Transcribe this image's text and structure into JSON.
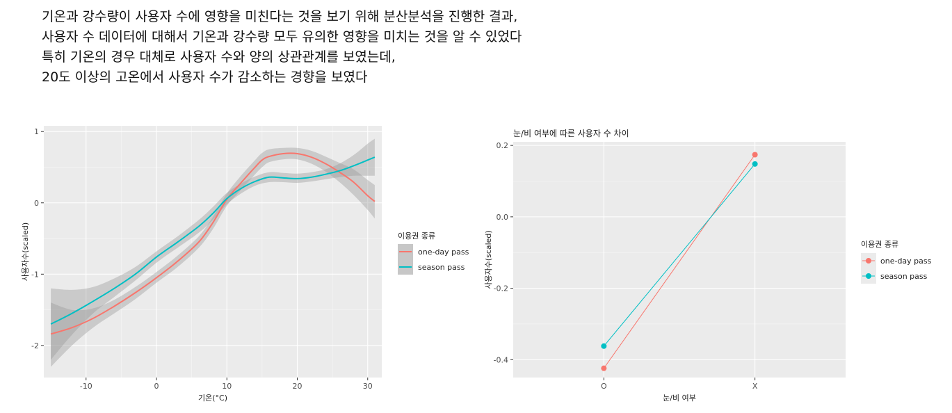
{
  "description": {
    "lines": [
      "기온과 강수량이 사용자 수에 영향을 미친다는 것을 보기 위해 분산분석을 진행한 결과,",
      "사용자 수 데이터에 대해서 기온과 강수량 모두 유의한 영향을 미치는 것을 알 수 있었다",
      "특히 기온의 경우 대체로 사용자 수와 양의 상관관계를 보였는데,",
      "20도 이상의 고온에서 사용자 수가 감소하는 경향을 보였다"
    ]
  },
  "colors": {
    "one_day": "#F8766D",
    "season": "#00BFC4",
    "panel": "#EBEBEB",
    "grid": "#FFFFFF",
    "ribbon": "#999999"
  },
  "chart_data": [
    {
      "type": "line",
      "subtype": "smooth-with-confidence-band",
      "title": "",
      "xlabel": "기온(°C)",
      "ylabel": "사용자수(scaled)",
      "xlim": [
        -16,
        32
      ],
      "ylim": [
        -2.45,
        1.08
      ],
      "xticks": [
        -10,
        0,
        10,
        20,
        30
      ],
      "xtick_labels": [
        "-10",
        "0",
        "10",
        "20",
        "30"
      ],
      "yticks": [
        -2,
        -1,
        0,
        1
      ],
      "ytick_labels": [
        "-2",
        "-1",
        "0",
        "1"
      ],
      "grid": true,
      "legend": {
        "title": "이용권 종류",
        "position": "right"
      },
      "series": [
        {
          "name": "one-day pass",
          "color": "#F8766D",
          "points": [
            [
              -15,
              -1.84
            ],
            [
              -12,
              -1.75
            ],
            [
              -9,
              -1.62
            ],
            [
              -6,
              -1.45
            ],
            [
              -3,
              -1.26
            ],
            [
              0,
              -1.05
            ],
            [
              3,
              -0.82
            ],
            [
              6,
              -0.55
            ],
            [
              8,
              -0.28
            ],
            [
              10,
              0.05
            ],
            [
              12,
              0.28
            ],
            [
              14,
              0.5
            ],
            [
              15,
              0.6
            ],
            [
              16,
              0.65
            ],
            [
              18,
              0.69
            ],
            [
              20,
              0.69
            ],
            [
              22,
              0.64
            ],
            [
              24,
              0.55
            ],
            [
              26,
              0.43
            ],
            [
              28,
              0.29
            ],
            [
              30,
              0.1
            ],
            [
              31,
              0.02
            ]
          ],
          "lower": [
            [
              -15,
              -2.3
            ],
            [
              -12,
              -2.0
            ],
            [
              -9,
              -1.75
            ],
            [
              -6,
              -1.55
            ],
            [
              -3,
              -1.35
            ],
            [
              0,
              -1.12
            ],
            [
              3,
              -0.9
            ],
            [
              6,
              -0.63
            ],
            [
              8,
              -0.37
            ],
            [
              10,
              -0.04
            ],
            [
              12,
              0.18
            ],
            [
              14,
              0.4
            ],
            [
              15,
              0.5
            ],
            [
              16,
              0.57
            ],
            [
              18,
              0.61
            ],
            [
              20,
              0.61
            ],
            [
              22,
              0.55
            ],
            [
              24,
              0.44
            ],
            [
              26,
              0.29
            ],
            [
              28,
              0.11
            ],
            [
              30,
              -0.1
            ],
            [
              31,
              -0.22
            ]
          ],
          "upper": [
            [
              -15,
              -1.4
            ],
            [
              -12,
              -1.5
            ],
            [
              -9,
              -1.48
            ],
            [
              -6,
              -1.36
            ],
            [
              -3,
              -1.18
            ],
            [
              0,
              -0.97
            ],
            [
              3,
              -0.74
            ],
            [
              6,
              -0.47
            ],
            [
              8,
              -0.2
            ],
            [
              10,
              0.13
            ],
            [
              12,
              0.38
            ],
            [
              14,
              0.6
            ],
            [
              15,
              0.7
            ],
            [
              16,
              0.75
            ],
            [
              18,
              0.77
            ],
            [
              20,
              0.77
            ],
            [
              22,
              0.73
            ],
            [
              24,
              0.65
            ],
            [
              26,
              0.56
            ],
            [
              28,
              0.47
            ],
            [
              30,
              0.32
            ],
            [
              31,
              0.25
            ]
          ]
        },
        {
          "name": "season pass",
          "color": "#00BFC4",
          "points": [
            [
              -15,
              -1.7
            ],
            [
              -12,
              -1.55
            ],
            [
              -9,
              -1.38
            ],
            [
              -6,
              -1.2
            ],
            [
              -3,
              -1.0
            ],
            [
              0,
              -0.76
            ],
            [
              3,
              -0.55
            ],
            [
              6,
              -0.33
            ],
            [
              8,
              -0.15
            ],
            [
              10,
              0.06
            ],
            [
              12,
              0.2
            ],
            [
              14,
              0.3
            ],
            [
              16,
              0.36
            ],
            [
              18,
              0.35
            ],
            [
              20,
              0.34
            ],
            [
              22,
              0.36
            ],
            [
              24,
              0.4
            ],
            [
              26,
              0.45
            ],
            [
              28,
              0.52
            ],
            [
              30,
              0.6
            ],
            [
              31,
              0.64
            ]
          ],
          "lower": [
            [
              -15,
              -2.2
            ],
            [
              -12,
              -1.85
            ],
            [
              -9,
              -1.55
            ],
            [
              -6,
              -1.32
            ],
            [
              -3,
              -1.09
            ],
            [
              0,
              -0.84
            ],
            [
              3,
              -0.63
            ],
            [
              6,
              -0.42
            ],
            [
              8,
              -0.24
            ],
            [
              10,
              -0.02
            ],
            [
              12,
              0.13
            ],
            [
              14,
              0.24
            ],
            [
              16,
              0.29
            ],
            [
              18,
              0.29
            ],
            [
              20,
              0.28
            ],
            [
              22,
              0.3
            ],
            [
              24,
              0.33
            ],
            [
              26,
              0.36
            ],
            [
              28,
              0.38
            ],
            [
              30,
              0.38
            ],
            [
              31,
              0.38
            ]
          ],
          "upper": [
            [
              -15,
              -1.2
            ],
            [
              -12,
              -1.22
            ],
            [
              -9,
              -1.18
            ],
            [
              -6,
              -1.06
            ],
            [
              -3,
              -0.9
            ],
            [
              0,
              -0.68
            ],
            [
              3,
              -0.47
            ],
            [
              6,
              -0.24
            ],
            [
              8,
              -0.06
            ],
            [
              10,
              0.14
            ],
            [
              12,
              0.27
            ],
            [
              14,
              0.37
            ],
            [
              16,
              0.43
            ],
            [
              18,
              0.42
            ],
            [
              20,
              0.41
            ],
            [
              22,
              0.43
            ],
            [
              24,
              0.47
            ],
            [
              26,
              0.55
            ],
            [
              28,
              0.67
            ],
            [
              30,
              0.83
            ],
            [
              31,
              0.9
            ]
          ]
        }
      ]
    },
    {
      "type": "line",
      "subtype": "point-line",
      "title": "눈/비 여부에 따른 사용자 수 차이",
      "xlabel": "눈/비 여부",
      "ylabel": "사용자수(scaled)",
      "categories": [
        "O",
        "X"
      ],
      "ylim": [
        -0.45,
        0.21
      ],
      "yticks": [
        -0.4,
        -0.2,
        0.0,
        0.2
      ],
      "ytick_labels": [
        "-0.4",
        "-0.2",
        "0.0",
        "0.2"
      ],
      "grid": true,
      "legend": {
        "title": "이용권 종류",
        "position": "right"
      },
      "series": [
        {
          "name": "one-day pass",
          "color": "#F8766D",
          "values": [
            -0.424,
            0.174
          ]
        },
        {
          "name": "season pass",
          "color": "#00BFC4",
          "values": [
            -0.362,
            0.148
          ]
        }
      ]
    }
  ]
}
